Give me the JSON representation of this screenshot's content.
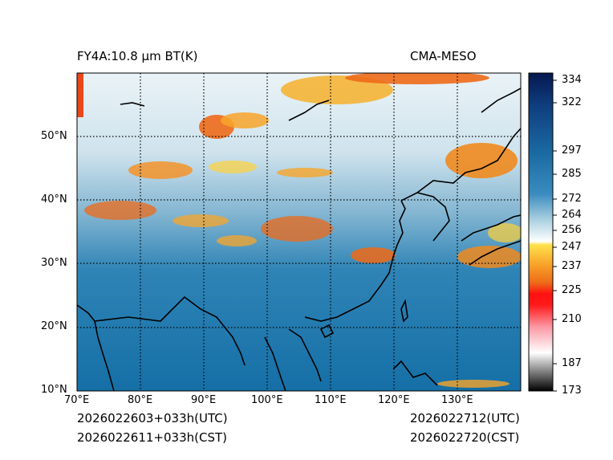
{
  "header": {
    "product_title": "FY4A:10.8 µm BT(K)",
    "source_title": "CMA-MESO"
  },
  "footer": {
    "init_utc": "2026022603+033h(UTC)",
    "init_cst": "2026022611+033h(CST)",
    "valid_utc": "2026022712(UTC)",
    "valid_cst": "2026022720(CST)"
  },
  "map": {
    "lon_labels": [
      "70°E",
      "80°E",
      "90°E",
      "100°E",
      "110°E",
      "120°E",
      "130°E"
    ],
    "lat_labels": [
      "10°N",
      "20°N",
      "30°N",
      "40°N",
      "50°N"
    ],
    "lon_range": [
      70,
      140
    ],
    "lat_range": [
      10,
      60
    ],
    "gridline_style": "dotted",
    "coastline_color": "#000000"
  },
  "colorbar": {
    "tick_labels": [
      "334",
      "322",
      "297",
      "285",
      "272",
      "264",
      "256",
      "247",
      "237",
      "225",
      "210",
      "187",
      "173"
    ],
    "tick_values": [
      334,
      322,
      297,
      285,
      272,
      264,
      256,
      247,
      237,
      225,
      210,
      187,
      173
    ],
    "colors": {
      "warm_top": "#06184f",
      "mid_blue": "#1f7fb3",
      "light_blue": "#cfe6f0",
      "white": "#ffffff",
      "yellow": "#ffd23a",
      "orange": "#f07f1a",
      "red": "#ff0d0d",
      "pink": "#f9c8cf",
      "grey": "#9a9a9a",
      "black": "#000000"
    }
  }
}
